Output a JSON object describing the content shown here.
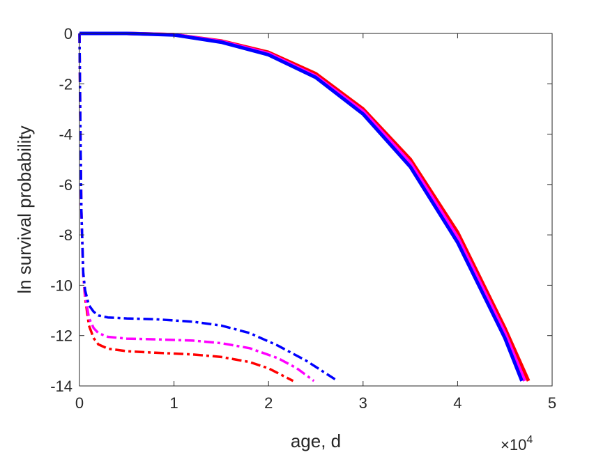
{
  "chart_data": {
    "type": "line",
    "title": "",
    "xlabel": "age, d",
    "ylabel": "ln survival probability",
    "x_exponent_label": "×10",
    "x_exponent_power": "4",
    "xlim": [
      0,
      50000
    ],
    "ylim": [
      -14,
      0
    ],
    "x_ticks": [
      0,
      10000,
      20000,
      30000,
      40000,
      50000
    ],
    "x_tick_labels": [
      "0",
      "1",
      "2",
      "3",
      "4",
      "5"
    ],
    "y_ticks": [
      0,
      -2,
      -4,
      -6,
      -8,
      -10,
      -12,
      -14
    ],
    "y_tick_labels": [
      "0",
      "-2",
      "-4",
      "-6",
      "-8",
      "-10",
      "-12",
      "-14"
    ],
    "grid": false,
    "box": true,
    "series": [
      {
        "color": "#ff0000",
        "style": "solid",
        "x": [
          0,
          5000,
          10000,
          15000,
          20000,
          25000,
          30000,
          35000,
          40000,
          45000,
          47500
        ],
        "y": [
          0,
          0,
          -0.05,
          -0.3,
          -0.75,
          -1.6,
          -3.0,
          -5.0,
          -7.9,
          -11.7,
          -13.8
        ]
      },
      {
        "color": "#ff00ff",
        "style": "solid",
        "x": [
          0,
          5000,
          10000,
          15000,
          20000,
          25000,
          30000,
          35000,
          40000,
          45000,
          47100
        ],
        "y": [
          0,
          0,
          -0.05,
          -0.32,
          -0.8,
          -1.7,
          -3.1,
          -5.15,
          -8.1,
          -11.9,
          -13.8
        ]
      },
      {
        "color": "#0000ff",
        "style": "solid",
        "x": [
          0,
          5000,
          10000,
          15000,
          20000,
          25000,
          30000,
          35000,
          40000,
          45000,
          46800
        ],
        "y": [
          0,
          0,
          -0.06,
          -0.35,
          -0.85,
          -1.75,
          -3.2,
          -5.3,
          -8.3,
          -12.1,
          -13.8
        ]
      },
      {
        "color": "#ff0000",
        "style": "dashdot",
        "x": [
          0,
          100,
          200,
          400,
          600,
          1000,
          1500,
          2000,
          3000,
          5000,
          8000,
          12000,
          15000,
          18000,
          20000,
          22600
        ],
        "y": [
          0,
          -4,
          -7,
          -9.6,
          -10.5,
          -11.6,
          -12.1,
          -12.35,
          -12.52,
          -12.62,
          -12.68,
          -12.75,
          -12.85,
          -13.05,
          -13.3,
          -13.8
        ]
      },
      {
        "color": "#ff00ff",
        "style": "dashdot",
        "x": [
          0,
          100,
          200,
          400,
          600,
          1000,
          1500,
          2000,
          3000,
          5000,
          8000,
          12000,
          15000,
          18000,
          21000,
          23000,
          24800
        ],
        "y": [
          0,
          -4,
          -7,
          -9.6,
          -10.4,
          -11.3,
          -11.7,
          -11.9,
          -12.05,
          -12.12,
          -12.15,
          -12.2,
          -12.3,
          -12.5,
          -12.9,
          -13.3,
          -13.8
        ]
      },
      {
        "color": "#0000ff",
        "style": "dashdot",
        "x": [
          0,
          100,
          200,
          400,
          600,
          1000,
          1500,
          2000,
          3000,
          5000,
          8000,
          12000,
          15000,
          18000,
          21000,
          24000,
          27300
        ],
        "y": [
          0,
          -4,
          -7,
          -9.5,
          -10.2,
          -10.8,
          -11.05,
          -11.2,
          -11.28,
          -11.32,
          -11.35,
          -11.45,
          -11.6,
          -11.9,
          -12.4,
          -13.0,
          -13.8
        ]
      }
    ]
  }
}
